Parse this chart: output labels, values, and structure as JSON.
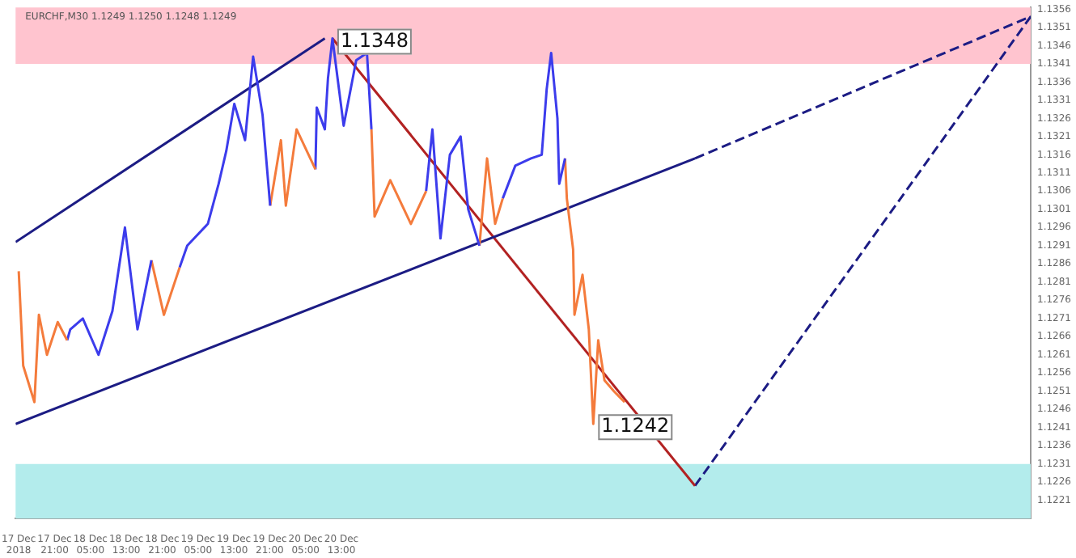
{
  "chart_data": {
    "type": "line",
    "title": "EURCHF,M30 1.1249 1.1250 1.1248 1.1249",
    "xlim": [
      "2018-12-17T12:18",
      "2018-12-26T22:48"
    ],
    "xticks": [
      {
        "value": "2018-12-17T13:00",
        "label": "17 Dec 2018"
      },
      {
        "value": "2018-12-17T21:00",
        "label": "17 Dec 21:00"
      },
      {
        "value": "2018-12-18T05:00",
        "label": "18 Dec 05:00"
      },
      {
        "value": "2018-12-18T13:00",
        "label": "18 Dec 13:00"
      },
      {
        "value": "2018-12-18T21:00",
        "label": "18 Dec 21:00"
      },
      {
        "value": "2018-12-19T05:00",
        "label": "19 Dec 05:00"
      },
      {
        "value": "2018-12-19T13:00",
        "label": "19 Dec 13:00"
      },
      {
        "value": "2018-12-19T21:00",
        "label": "19 Dec 21:00"
      },
      {
        "value": "2018-12-20T05:00",
        "label": "20 Dec 05:00"
      },
      {
        "value": "2018-12-20T13:00",
        "label": "20 Dec 13:00"
      }
    ],
    "ylim": [
      1.1216,
      1.13565
    ],
    "yticks": [
      1.1356,
      1.1351,
      1.1346,
      1.1341,
      1.1336,
      1.1331,
      1.1326,
      1.1321,
      1.1316,
      1.1311,
      1.1306,
      1.1301,
      1.1296,
      1.1291,
      1.1286,
      1.1281,
      1.1276,
      1.1271,
      1.1266,
      1.1261,
      1.1256,
      1.1251,
      1.1246,
      1.1241,
      1.1236,
      1.1231,
      1.1226,
      1.1221
    ],
    "grid": false,
    "legend": false,
    "marker": "none",
    "bands": [
      {
        "axis": "y",
        "from": 1.1341,
        "to": 1.13565,
        "color": "#ffc4cf"
      },
      {
        "axis": "y",
        "from": 1.1216,
        "to": 1.1231,
        "color": "#b3ecec"
      }
    ],
    "annotations": [
      {
        "text": "1.1348",
        "x": "2018-12-20T11:00",
        "y": 1.1348
      },
      {
        "text": "1.1242",
        "x": "2018-12-22T21:12",
        "y": 1.1242
      }
    ],
    "series": [
      {
        "color": "#f47b3c",
        "x": [
          "2018-12-17T13:00",
          "2018-12-17T14:00",
          "2018-12-17T16:30",
          "2018-12-17T17:30",
          "2018-12-17T19:18",
          "2018-12-17T21:42",
          "2018-12-17T23:48"
        ],
        "values": [
          1.1284,
          1.1258,
          1.1248,
          1.1272,
          1.1261,
          1.127,
          1.1265
        ]
      },
      {
        "color": "#3c3cec",
        "x": [
          "2018-12-17T23:48",
          "2018-12-18T00:30",
          "2018-12-18T03:18",
          "2018-12-18T06:48",
          "2018-12-18T09:54",
          "2018-12-18T12:42",
          "2018-12-18T15:30",
          "2018-12-18T18:36"
        ],
        "values": [
          1.1265,
          1.1268,
          1.1271,
          1.1261,
          1.1273,
          1.1296,
          1.1268,
          1.1287
        ]
      },
      {
        "color": "#f47b3c",
        "x": [
          "2018-12-18T18:36",
          "2018-12-18T21:24",
          "2018-12-19T00:54"
        ],
        "values": [
          1.1287,
          1.1272,
          1.1285
        ]
      },
      {
        "color": "#3c3cec",
        "x": [
          "2018-12-19T00:54",
          "2018-12-19T02:36",
          "2018-12-19T07:12",
          "2018-12-19T09:36",
          "2018-12-19T11:18",
          "2018-12-19T13:06",
          "2018-12-19T15:30",
          "2018-12-19T17:18",
          "2018-12-19T19:24",
          "2018-12-19T21:06"
        ],
        "values": [
          1.1285,
          1.1291,
          1.1297,
          1.1308,
          1.1317,
          1.133,
          1.132,
          1.1343,
          1.1327,
          1.1302
        ]
      },
      {
        "color": "#f47b3c",
        "x": [
          "2018-12-19T21:06",
          "2018-12-19T23:30",
          "2018-12-20T00:36",
          "2018-12-20T03:00",
          "2018-12-20T07:12"
        ],
        "values": [
          1.1302,
          1.132,
          1.1302,
          1.1323,
          1.1312
        ]
      },
      {
        "color": "#3c3cec",
        "x": [
          "2018-12-20T07:12",
          "2018-12-20T07:30",
          "2018-12-20T09:18",
          "2018-12-20T10:00",
          "2018-12-20T11:00",
          "2018-12-20T13:30",
          "2018-12-20T16:18",
          "2018-12-20T18:42",
          "2018-12-20T19:42"
        ],
        "values": [
          1.1312,
          1.1329,
          1.1323,
          1.1337,
          1.1348,
          1.1324,
          1.1342,
          1.1344,
          1.1323
        ]
      },
      {
        "color": "#f47b3c",
        "x": [
          "2018-12-20T19:42",
          "2018-12-20T20:24",
          "2018-12-20T23:54",
          "2018-12-21T04:30",
          "2018-12-21T07:54"
        ],
        "values": [
          1.1323,
          1.1299,
          1.1309,
          1.1297,
          1.1306
        ]
      },
      {
        "color": "#3c3cec",
        "x": [
          "2018-12-21T07:54",
          "2018-12-21T09:18",
          "2018-12-21T11:06",
          "2018-12-21T13:12",
          "2018-12-21T15:36",
          "2018-12-21T17:18",
          "2018-12-21T19:48"
        ],
        "values": [
          1.1306,
          1.1323,
          1.1293,
          1.1316,
          1.1321,
          1.1301,
          1.1291
        ]
      },
      {
        "color": "#f47b3c",
        "x": [
          "2018-12-21T19:48",
          "2018-12-21T21:30",
          "2018-12-21T23:18",
          "2018-12-22T01:00"
        ],
        "values": [
          1.1291,
          1.1315,
          1.1297,
          1.1304
        ]
      },
      {
        "color": "#3c3cec",
        "x": [
          "2018-12-22T01:00",
          "2018-12-22T03:48",
          "2018-12-22T07:18",
          "2018-12-22T09:42",
          "2018-12-22T10:48",
          "2018-12-22T11:48",
          "2018-12-22T13:12",
          "2018-12-22T13:36",
          "2018-12-22T14:54"
        ],
        "values": [
          1.1304,
          1.1313,
          1.1315,
          1.1316,
          1.1334,
          1.1344,
          1.1326,
          1.1308,
          1.1315
        ]
      },
      {
        "color": "#f47b3c",
        "x": [
          "2018-12-22T14:54",
          "2018-12-22T15:18",
          "2018-12-22T16:42",
          "2018-12-22T17:00",
          "2018-12-22T18:48",
          "2018-12-22T20:12",
          "2018-12-22T21:12",
          "2018-12-22T22:18",
          "2018-12-22T23:42",
          "2018-12-23T01:48",
          "2018-12-23T04:12"
        ],
        "values": [
          1.1315,
          1.1304,
          1.129,
          1.1272,
          1.1283,
          1.1268,
          1.1242,
          1.1265,
          1.1254,
          1.1251,
          1.1248
        ]
      },
      {
        "color": "#1c1c84",
        "x": [
          "2018-12-17T12:18",
          "2018-12-20T09:18"
        ],
        "values": [
          1.1292,
          1.1348
        ]
      },
      {
        "color": "#1c1c84",
        "x": [
          "2018-12-17T12:18",
          "2018-12-23T19:54"
        ],
        "values": [
          1.1242,
          1.1315
        ]
      },
      {
        "color": "#1c1c84",
        "line_style": "dashed",
        "x": [
          "2018-12-23T19:54",
          "2018-12-26T22:48"
        ],
        "values": [
          1.1315,
          1.1354
        ]
      },
      {
        "color": "#b22222",
        "x": [
          "2018-12-20T11:00",
          "2018-12-23T19:54"
        ],
        "values": [
          1.1348,
          1.1225
        ]
      },
      {
        "color": "#1c1c84",
        "line_style": "dashed",
        "x": [
          "2018-12-23T19:54",
          "2018-12-26T22:48"
        ],
        "values": [
          1.1225,
          1.1354
        ]
      }
    ]
  }
}
